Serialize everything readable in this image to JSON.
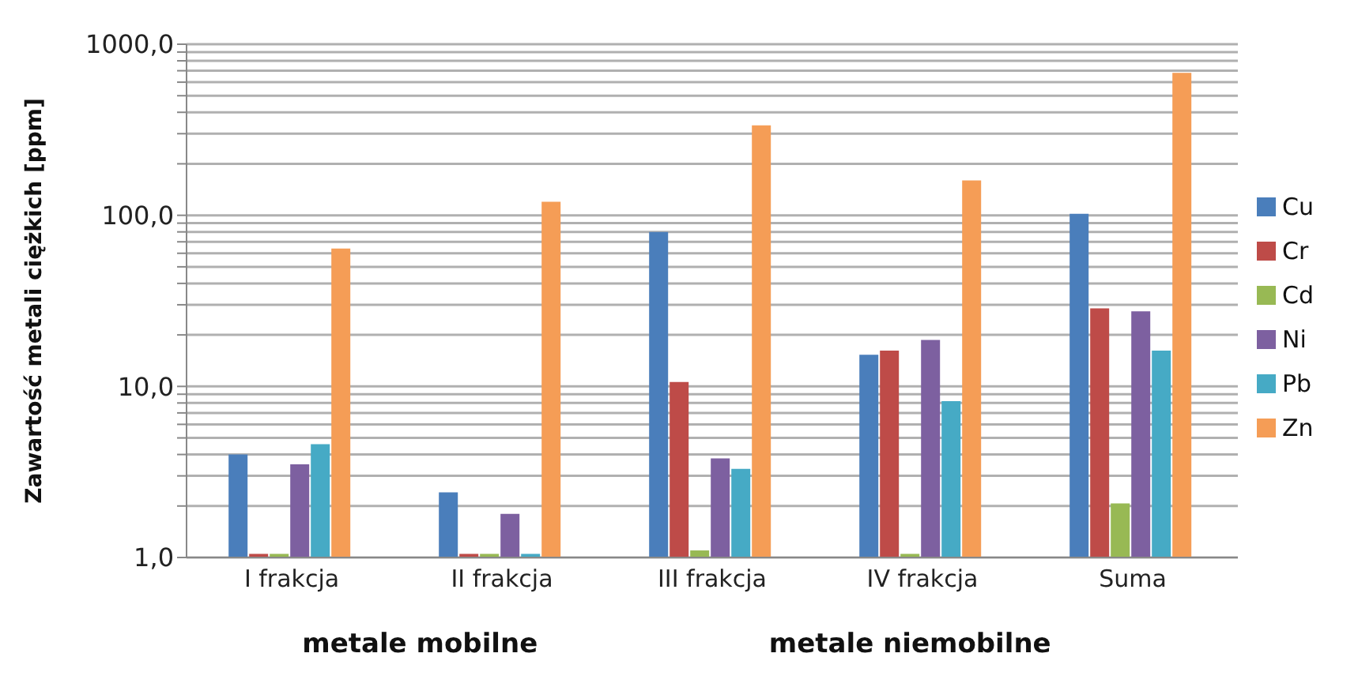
{
  "chart_data": {
    "type": "bar",
    "ylabel": "Zawartość metali ciężkich [ppm]",
    "categories": [
      "I frakcja",
      "II frakcja",
      "III frakcja",
      "IV frakcja",
      "Suma"
    ],
    "series": [
      {
        "name": "Cu",
        "color": "#4a7ebb",
        "values": [
          4.0,
          2.4,
          80,
          15.3,
          102
        ]
      },
      {
        "name": "Cr",
        "color": "#be4b48",
        "values": [
          1.05,
          1.05,
          10.6,
          16.2,
          28.6
        ]
      },
      {
        "name": "Cd",
        "color": "#98b954",
        "values": [
          1.05,
          1.05,
          1.1,
          1.05,
          2.07
        ]
      },
      {
        "name": "Ni",
        "color": "#7d60a0",
        "values": [
          3.5,
          1.8,
          3.8,
          18.7,
          27.5
        ]
      },
      {
        "name": "Pb",
        "color": "#46aac5",
        "values": [
          4.6,
          1.05,
          3.3,
          8.2,
          16.2
        ]
      },
      {
        "name": "Zn",
        "color": "#f59d56",
        "values": [
          64,
          120,
          336,
          160,
          680
        ]
      }
    ],
    "log": "y",
    "ylim": [
      1,
      1000
    ],
    "yticks": [
      {
        "value": 1,
        "label": "1,0"
      },
      {
        "value": 2,
        "label": null
      },
      {
        "value": 3,
        "label": null
      },
      {
        "value": 4,
        "label": null
      },
      {
        "value": 5,
        "label": null
      },
      {
        "value": 6,
        "label": null
      },
      {
        "value": 7,
        "label": null
      },
      {
        "value": 8,
        "label": null
      },
      {
        "value": 9,
        "label": null
      },
      {
        "value": 10,
        "label": "10,0"
      },
      {
        "value": 20,
        "label": null
      },
      {
        "value": 30,
        "label": null
      },
      {
        "value": 40,
        "label": null
      },
      {
        "value": 50,
        "label": null
      },
      {
        "value": 60,
        "label": null
      },
      {
        "value": 70,
        "label": null
      },
      {
        "value": 80,
        "label": null
      },
      {
        "value": 90,
        "label": null
      },
      {
        "value": 100,
        "label": "100,0"
      },
      {
        "value": 200,
        "label": null
      },
      {
        "value": 300,
        "label": null
      },
      {
        "value": 400,
        "label": null
      },
      {
        "value": 500,
        "label": null
      },
      {
        "value": 600,
        "label": null
      },
      {
        "value": 700,
        "label": null
      },
      {
        "value": 800,
        "label": null
      },
      {
        "value": 900,
        "label": null
      },
      {
        "value": 1000,
        "label": "1000,0"
      }
    ],
    "grid": "y",
    "legend": "right",
    "annotations": [
      "metale mobilne",
      "metale niemobilne"
    ]
  }
}
